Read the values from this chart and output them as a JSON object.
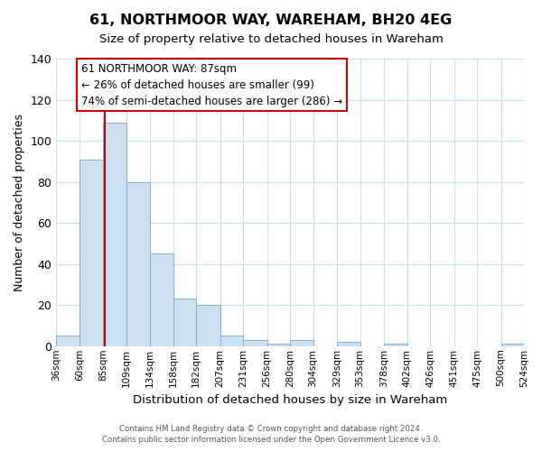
{
  "title": "61, NORTHMOOR WAY, WAREHAM, BH20 4EG",
  "subtitle": "Size of property relative to detached houses in Wareham",
  "xlabel": "Distribution of detached houses by size in Wareham",
  "ylabel": "Number of detached properties",
  "bin_edges": [
    36,
    60,
    85,
    109,
    134,
    158,
    182,
    207,
    231,
    256,
    280,
    304,
    329,
    353,
    378,
    402,
    426,
    451,
    475,
    500,
    524
  ],
  "bin_labels": [
    "36sqm",
    "60sqm",
    "85sqm",
    "109sqm",
    "134sqm",
    "158sqm",
    "182sqm",
    "207sqm",
    "231sqm",
    "256sqm",
    "280sqm",
    "304sqm",
    "329sqm",
    "353sqm",
    "378sqm",
    "402sqm",
    "426sqm",
    "451sqm",
    "475sqm",
    "500sqm",
    "524sqm"
  ],
  "bar_heights": [
    5,
    91,
    109,
    80,
    45,
    23,
    20,
    5,
    3,
    1,
    3,
    0,
    2,
    0,
    1,
    0,
    0,
    0,
    0,
    1
  ],
  "bar_color": "#cce0f0",
  "bar_edge_color": "#7ab0d4",
  "property_line_x": 87,
  "property_line_color": "#cc0000",
  "ylim": [
    0,
    140
  ],
  "yticks": [
    0,
    20,
    40,
    60,
    80,
    100,
    120,
    140
  ],
  "annotation_title": "61 NORTHMOOR WAY: 87sqm",
  "annotation_line1": "← 26% of detached houses are smaller (99)",
  "annotation_line2": "74% of semi-detached houses are larger (286) →",
  "annotation_box_color": "#ffffff",
  "annotation_box_edge": "#cc0000",
  "footer_line1": "Contains HM Land Registry data © Crown copyright and database right 2024.",
  "footer_line2": "Contains public sector information licensed under the Open Government Licence v3.0.",
  "background_color": "#ffffff",
  "grid_color": "#c8dff0"
}
